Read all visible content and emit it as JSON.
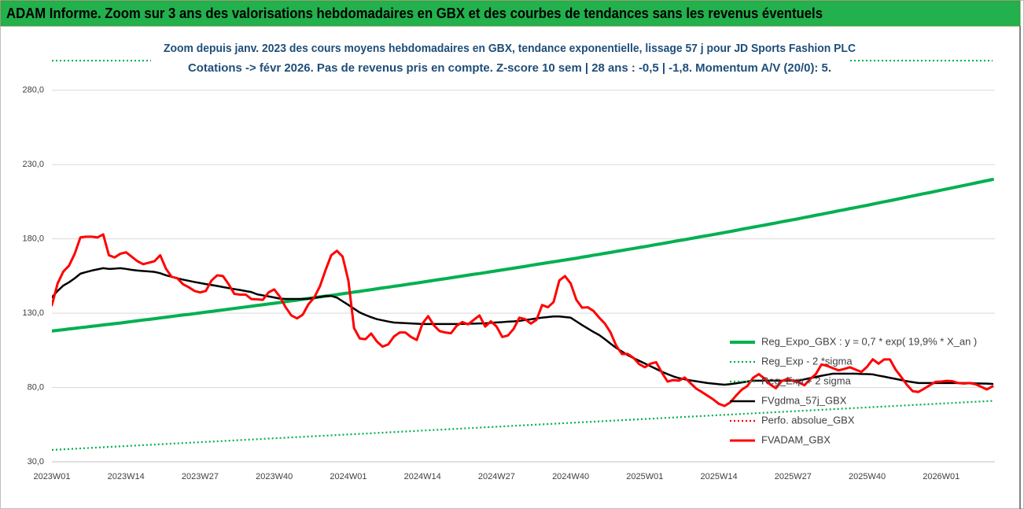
{
  "chart_data": {
    "type": "line",
    "title": "ADAM Informe. Zoom sur 3 ans des valorisations hebdomadaires en GBX et des courbes de tendances sans les revenus éventuels",
    "subtitle": [
      "Zoom depuis janv. 2023 des cours moyens hebdomadaires en GBX, tendance exponentielle, lissage 57 j pour JD Sports Fashion PLC",
      "Cotations -> févr 2026.  Pas de revenus pris en compte. Z-score 10 sem | 28 ans : -0,5 | -1,8. Momentum A/V (20/0): 5."
    ],
    "categories": [
      "2023W01",
      null,
      null,
      null,
      null,
      null,
      null,
      null,
      null,
      null,
      null,
      null,
      null,
      "2023W14",
      null,
      null,
      null,
      null,
      null,
      null,
      null,
      null,
      null,
      null,
      null,
      null,
      "2023W27",
      null,
      null,
      null,
      null,
      null,
      null,
      null,
      null,
      null,
      null,
      null,
      null,
      "2023W40",
      null,
      null,
      null,
      null,
      null,
      null,
      null,
      null,
      null,
      null,
      null,
      null,
      "2024W01",
      null,
      null,
      null,
      null,
      null,
      null,
      null,
      null,
      null,
      null,
      null,
      null,
      "2024W14",
      null,
      null,
      null,
      null,
      null,
      null,
      null,
      null,
      null,
      null,
      null,
      null,
      "2024W27",
      null,
      null,
      null,
      null,
      null,
      null,
      null,
      null,
      null,
      null,
      null,
      null,
      "2024W40",
      null,
      null,
      null,
      null,
      null,
      null,
      null,
      null,
      null,
      null,
      null,
      null,
      "2025W01",
      null,
      null,
      null,
      null,
      null,
      null,
      null,
      null,
      null,
      null,
      null,
      null,
      "2025W14",
      null,
      null,
      null,
      null,
      null,
      null,
      null,
      null,
      null,
      null,
      null,
      null,
      "2025W27",
      null,
      null,
      null,
      null,
      null,
      null,
      null,
      null,
      null,
      null,
      null,
      null,
      "2025W40",
      null,
      null,
      null,
      null,
      null,
      null,
      null,
      null,
      null,
      null,
      null,
      null,
      "2026W01",
      null,
      null,
      null,
      null,
      null,
      null,
      null,
      null,
      null
    ],
    "series": [
      {
        "name": "Reg_Expo_GBX : y = 0,7 * exp( 19,9% *  X_an )",
        "color": "#00b050",
        "line_style": "solid",
        "values": [
          118.0,
          118.5,
          118.9,
          119.4,
          119.8,
          120.3,
          120.7,
          121.2,
          121.6,
          122.1,
          122.5,
          123.0,
          123.4,
          123.9,
          124.4,
          124.9,
          125.4,
          125.8,
          126.3,
          126.8,
          127.3,
          127.8,
          128.3,
          128.8,
          129.2,
          129.7,
          130.2,
          130.7,
          131.2,
          131.7,
          132.2,
          132.7,
          133.2,
          133.7,
          134.2,
          134.7,
          135.2,
          135.7,
          136.2,
          136.7,
          137.2,
          137.8,
          138.3,
          138.8,
          139.4,
          139.9,
          140.4,
          141.0,
          141.5,
          142.0,
          142.5,
          143.1,
          143.6,
          144.2,
          144.7,
          145.3,
          145.8,
          146.4,
          147.0,
          147.5,
          148.1,
          148.6,
          149.2,
          149.8,
          150.3,
          150.9,
          151.5,
          152.1,
          152.7,
          153.2,
          153.8,
          154.4,
          155.0,
          155.6,
          156.2,
          156.7,
          157.3,
          157.9,
          158.5,
          159.1,
          159.7,
          160.3,
          160.9,
          161.5,
          162.2,
          162.8,
          163.4,
          164.0,
          164.6,
          165.2,
          165.8,
          166.4,
          167.0,
          167.7,
          168.3,
          169.0,
          169.6,
          170.3,
          170.9,
          171.6,
          172.2,
          172.9,
          173.5,
          174.2,
          174.8,
          175.5,
          176.2,
          176.8,
          177.5,
          178.2,
          178.9,
          179.5,
          180.2,
          180.9,
          181.6,
          182.2,
          182.9,
          183.6,
          184.3,
          185.0,
          185.7,
          186.5,
          187.2,
          187.9,
          188.6,
          189.3,
          190.0,
          190.7,
          191.5,
          192.2,
          192.9,
          193.6,
          194.4,
          195.1,
          195.9,
          196.6,
          197.4,
          198.1,
          198.9,
          199.6,
          200.4,
          201.1,
          201.9,
          202.6,
          203.4,
          204.2,
          205.0,
          205.7,
          206.5,
          207.3,
          208.1,
          208.9,
          209.7,
          210.5,
          211.2,
          212.0,
          212.8,
          213.6,
          214.4,
          215.2,
          216.0,
          216.8,
          217.6,
          218.4,
          219.2,
          220.0
        ]
      },
      {
        "name": "Reg_Exp - 2 *sigma",
        "color": "#00b050",
        "line_style": "dotted",
        "values": [
          38,
          38.2,
          38.4,
          38.6,
          38.8,
          39,
          39.2,
          39.4,
          39.6,
          39.8,
          40,
          40.2,
          40.4,
          40.6,
          40.8,
          41,
          41.2,
          41.4,
          41.6,
          41.8,
          42,
          42.2,
          42.4,
          42.6,
          42.8,
          43,
          43.2,
          43.4,
          43.6,
          43.8,
          44,
          44.2,
          44.4,
          44.6,
          44.8,
          45,
          45.2,
          45.4,
          45.6,
          45.8,
          46,
          46.2,
          46.4,
          46.6,
          46.8,
          47,
          47.2,
          47.4,
          47.6,
          47.8,
          48,
          48.2,
          48.4,
          48.6,
          48.8,
          49,
          49.2,
          49.4,
          49.6,
          49.8,
          50,
          50.2,
          50.4,
          50.6,
          50.8,
          51,
          51.2,
          51.4,
          51.6,
          51.8,
          52,
          52.2,
          52.4,
          52.6,
          52.8,
          53,
          53.2,
          53.4,
          53.6,
          53.8,
          54,
          54.2,
          54.4,
          54.6,
          54.8,
          55,
          55.2,
          55.4,
          55.6,
          55.8,
          56,
          56.2,
          56.4,
          56.6,
          56.8,
          57,
          57.2,
          57.4,
          57.6,
          57.8,
          58,
          58.2,
          58.4,
          58.6,
          58.8,
          59,
          59.2,
          59.4,
          59.6,
          59.8,
          60,
          60.2,
          60.4,
          60.6,
          60.8,
          61,
          61.2,
          61.4,
          61.6,
          61.8,
          62,
          62.2,
          62.4,
          62.6,
          62.8,
          63,
          63.2,
          63.4,
          63.6,
          63.8,
          64,
          64.2,
          64.4,
          64.6,
          64.8,
          65,
          65.2,
          65.4,
          65.6,
          65.8,
          66,
          66.2,
          66.4,
          66.6,
          66.8,
          67,
          67.2,
          67.4,
          67.6,
          67.8,
          68,
          68.2,
          68.4,
          68.6,
          68.8,
          69,
          69.2,
          69.4,
          69.6,
          69.8,
          70,
          70.2,
          70.4,
          70.6,
          70.8,
          71
        ]
      },
      {
        "name": "Reg_Exp + 2 sigma",
        "color": "#00b050",
        "line_style": "dotted",
        "values": [
          300,
          300,
          300,
          300,
          300,
          300,
          300,
          300,
          300,
          300,
          300,
          300,
          300,
          300,
          300,
          300,
          300,
          300,
          300,
          300,
          300,
          300,
          300,
          300,
          300,
          300,
          300,
          300,
          300,
          300,
          300,
          300,
          300,
          300,
          300,
          300,
          300,
          300,
          300,
          300,
          300,
          300,
          300,
          300,
          300,
          300,
          300,
          300,
          300,
          300,
          300,
          300,
          300,
          300,
          300,
          300,
          300,
          300,
          300,
          300,
          300,
          300,
          300,
          300,
          300,
          300,
          300,
          300,
          300,
          300,
          300,
          300,
          300,
          300,
          300,
          300,
          300,
          300,
          300,
          300,
          300,
          300,
          300,
          300,
          300,
          300,
          300,
          300,
          300,
          300,
          300,
          300,
          300,
          300,
          300,
          300,
          300,
          300,
          300,
          300,
          300,
          300,
          300,
          300,
          300,
          300,
          300,
          300,
          300,
          300,
          300,
          300,
          300,
          300,
          300,
          300,
          300,
          300,
          300,
          300,
          300,
          300,
          300,
          300,
          300,
          300,
          300,
          300,
          300,
          300,
          300,
          300,
          300,
          300,
          300,
          300,
          300,
          300,
          300,
          300,
          300,
          300,
          300,
          300,
          300,
          300,
          300,
          300,
          300,
          300,
          300,
          300,
          300,
          300,
          300,
          300,
          300,
          300,
          300,
          300,
          300,
          300,
          300,
          300,
          300,
          300
        ]
      },
      {
        "name": "FVgdma_57j_GBX",
        "color": "#000000",
        "line_style": "solid",
        "values": [
          140.7,
          145,
          148.6,
          150.8,
          153.5,
          156.6,
          157.7,
          158.7,
          159.5,
          160.3,
          159.8,
          160,
          160.3,
          159.8,
          159.2,
          158.7,
          158.4,
          158.1,
          157.8,
          156.9,
          155.5,
          154.5,
          153.4,
          152.6,
          151.8,
          151,
          150.3,
          149.6,
          149,
          148.3,
          147.6,
          146.9,
          146.2,
          145.6,
          144.9,
          144.2,
          142.7,
          142,
          141.3,
          140.6,
          139.8,
          139.6,
          139.6,
          139.6,
          139.6,
          139.7,
          140.3,
          140.9,
          141.5,
          141.6,
          140.5,
          138,
          135.6,
          133,
          130.5,
          128.8,
          127.3,
          126,
          125.2,
          124.4,
          123.7,
          123.5,
          123.3,
          123.1,
          122.9,
          122.7,
          122.7,
          122.7,
          122.7,
          122.7,
          122.7,
          122.7,
          122.8,
          122.9,
          123,
          123.1,
          123.2,
          123.5,
          123.8,
          124,
          124.3,
          124.5,
          124.8,
          125.4,
          125.9,
          126.5,
          127,
          127.4,
          127.8,
          127.8,
          127.4,
          127,
          124.5,
          122,
          119.7,
          117.4,
          115.3,
          112.5,
          109.5,
          106.6,
          104.2,
          101.8,
          99.8,
          98,
          96.2,
          94.3,
          92.5,
          90.6,
          89,
          87.5,
          86.3,
          85.5,
          84.8,
          84.2,
          83.6,
          83,
          82.6,
          82.2,
          81.9,
          82.3,
          82.8,
          83.4,
          84,
          84.6,
          84.6,
          84.6,
          84.6,
          84.6,
          84.6,
          84.6,
          84.6,
          84.6,
          85.5,
          86.3,
          87.1,
          87.9,
          88.6,
          89.3,
          89.3,
          89.3,
          89.3,
          89.3,
          89.1,
          89,
          88.8,
          88,
          87.3,
          86.5,
          85.8,
          85,
          84.2,
          83.6,
          83,
          83,
          83,
          83,
          83,
          83,
          83,
          83,
          83,
          83,
          82.8,
          82.7,
          82.6,
          82.4
        ]
      },
      {
        "name": "Perfo. absolue_GBX",
        "color": "#ff0000",
        "line_style": "dotted",
        "values": [
          null,
          null,
          null,
          null,
          null,
          null,
          null,
          null,
          null,
          null,
          null,
          null,
          null,
          null,
          null,
          null,
          null,
          null,
          null,
          null,
          null,
          null,
          null,
          null,
          null,
          null,
          null,
          null,
          null,
          null,
          null,
          null,
          null,
          null,
          null,
          null,
          null,
          null,
          null,
          null,
          null,
          null,
          null,
          null,
          null,
          null,
          null,
          null,
          null,
          null,
          null,
          null,
          null,
          null,
          null,
          null,
          null,
          null,
          null,
          null,
          null,
          null,
          null,
          null,
          null,
          null,
          null,
          null,
          null,
          null,
          null,
          null,
          null,
          null,
          null,
          null,
          null,
          null,
          null,
          null,
          null,
          null,
          null,
          null,
          null,
          null,
          null,
          null,
          null,
          null,
          null,
          null,
          null,
          null,
          null,
          null,
          null,
          null,
          null,
          null,
          null,
          null,
          null,
          null,
          null,
          null,
          null,
          null,
          null,
          null,
          null,
          null,
          null,
          null,
          null,
          null,
          null,
          null,
          null,
          null,
          null,
          null,
          null,
          null,
          null,
          null,
          null,
          null,
          null,
          null,
          null,
          null,
          null,
          null,
          null,
          null,
          null,
          null,
          null,
          null,
          null,
          null,
          null,
          null,
          null,
          null,
          null,
          null,
          null,
          null,
          null,
          null,
          null,
          null,
          null,
          null,
          null,
          null,
          null,
          null,
          null,
          null,
          null,
          null,
          null,
          null
        ]
      },
      {
        "name": "FVADAM_GBX",
        "color": "#ff0000",
        "line_style": "solid",
        "values": [
          135.4,
          150,
          158,
          162,
          170,
          181,
          181.5,
          181.5,
          181,
          183,
          169,
          167.5,
          170,
          171,
          168,
          165,
          163,
          164,
          165,
          169,
          160,
          154.5,
          153.5,
          149.5,
          147.5,
          145,
          144,
          145,
          152,
          155.5,
          155,
          149.5,
          143,
          142.5,
          142.5,
          139.5,
          139.3,
          139,
          144,
          146,
          141,
          134,
          128.5,
          126.5,
          129,
          136,
          140.5,
          148,
          159,
          169,
          172,
          168,
          152,
          120,
          113,
          112.5,
          116.3,
          111,
          107.5,
          109,
          114.3,
          117,
          117,
          114,
          112,
          123,
          128,
          121.8,
          118,
          117,
          116.5,
          121.5,
          124,
          122.5,
          125.5,
          128.5,
          121,
          124.5,
          121,
          114,
          115,
          119.5,
          127,
          126,
          123,
          125.5,
          135.5,
          134,
          137.5,
          152,
          155,
          150,
          139,
          133.7,
          134,
          131.5,
          127,
          123,
          117,
          108,
          102.5,
          102.6,
          100,
          95.8,
          93.6,
          96,
          97,
          90,
          84,
          85,
          84.6,
          86.7,
          83,
          79.3,
          77,
          74.5,
          72,
          69,
          67.6,
          70,
          74.5,
          78.5,
          81,
          86.5,
          89,
          86,
          82,
          79.5,
          84.3,
          85.7,
          84.5,
          83.5,
          81.5,
          85.6,
          89,
          95.5,
          94.6,
          93,
          91.5,
          92.5,
          93.6,
          92,
          90.5,
          94,
          99,
          96,
          98.9,
          98.9,
          92,
          87,
          81.7,
          77.5,
          77,
          79.2,
          81.5,
          83.8,
          84,
          84.5,
          84.2,
          83,
          82.7,
          83,
          82.2,
          80.5,
          78.7,
          80.8
        ]
      }
    ],
    "ylim": [
      30,
      300
    ],
    "yticks": [
      {
        "value": 30,
        "label": "30,0"
      },
      {
        "value": 80,
        "label": "80,0"
      },
      {
        "value": 130,
        "label": "130,0"
      },
      {
        "value": 180,
        "label": "180,0"
      },
      {
        "value": 230,
        "label": "230,0"
      },
      {
        "value": 280,
        "label": "280,0"
      }
    ],
    "grid": true,
    "legend": "right"
  }
}
